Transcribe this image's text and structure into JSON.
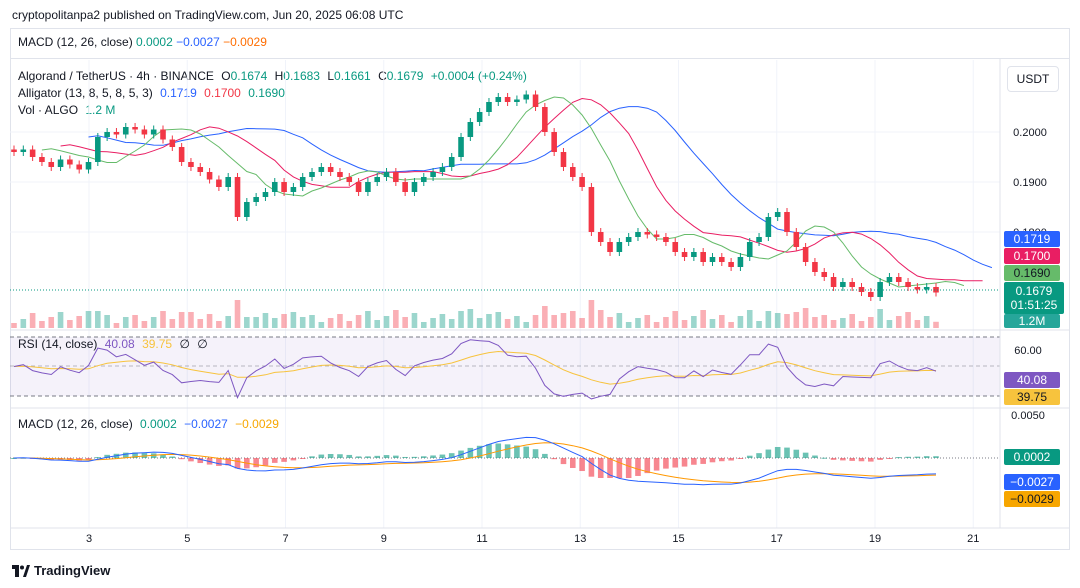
{
  "publisher_line": "cryptopolitanpa2 published on TradingView.com, Jun 20, 2025 06:08 UTC",
  "macd_top": {
    "label": "MACD (12, 26, close)",
    "v1": "0.0002",
    "v2": "−0.0027",
    "v3": "−0.0029"
  },
  "main_legend": {
    "symbol": "Algorand / TetherUS · 4h · BINANCE",
    "o_label": "O",
    "o": "0.1674",
    "h_label": "H",
    "h": "0.1683",
    "l_label": "L",
    "l": "0.1661",
    "c_label": "C",
    "c": "0.1679",
    "change": "+0.0004 (+0.24%)",
    "alligator_label": "Alligator (13, 8, 5, 8, 5, 3)",
    "alligator_jaw": "0.1719",
    "alligator_teeth": "0.1700",
    "alligator_lips": "0.1690",
    "vol_label": "Vol · ALGO",
    "vol": "1.2 M"
  },
  "currency_button": "USDT",
  "rsi_legend": {
    "label": "RSI (14, close)",
    "v1": "40.08",
    "v2": "39.75",
    "v3": "∅",
    "v4": "∅"
  },
  "macd_legend": {
    "label": "MACD (12, 26, close)",
    "v1": "0.0002",
    "v2": "−0.0027",
    "v3": "−0.0029"
  },
  "price_axis": {
    "ticks": [
      "0.2000",
      "0.1900",
      "0.1800"
    ]
  },
  "price_tags": {
    "jaw": "0.1719",
    "teeth": "0.1700",
    "lips": "0.1690",
    "last": "0.1679",
    "countdown": "01:51:25",
    "volume": "1.2M"
  },
  "rsi_axis": {
    "tick": "60.00",
    "tag1": "40.08",
    "tag2": "39.75"
  },
  "macd_axis": {
    "tick": "0.0050",
    "tag1": "0.0002",
    "tag2": "−0.0027",
    "tag3": "−0.0029"
  },
  "x_axis": [
    "3",
    "5",
    "7",
    "9",
    "11",
    "13",
    "15",
    "17",
    "19",
    "21"
  ],
  "footer": "TradingView",
  "colors": {
    "up": "#089981",
    "down": "#f23645",
    "jaw": "#2962ff",
    "teeth": "#e91e63",
    "lips": "#66bb6a",
    "rsi": "#7e57c2",
    "rsi_ma": "#f7c33d",
    "macd": "#2962ff",
    "signal": "#ff9800"
  },
  "chart_data": {
    "type": "candlestick",
    "interval": "4h",
    "x_axis_days": [
      3,
      5,
      7,
      9,
      11,
      13,
      15,
      17,
      19,
      21
    ],
    "price_ylim": [
      0.178,
      0.211
    ],
    "ohlc_last": {
      "open": 0.1674,
      "high": 0.1683,
      "low": 0.1661,
      "close": 0.1679
    },
    "closes": [
      0.196,
      0.1965,
      0.195,
      0.194,
      0.193,
      0.1945,
      0.1935,
      0.1925,
      0.194,
      0.199,
      0.2,
      0.1995,
      0.201,
      0.2005,
      0.1995,
      0.2005,
      0.1985,
      0.197,
      0.194,
      0.193,
      0.192,
      0.1905,
      0.189,
      0.191,
      0.183,
      0.186,
      0.187,
      0.188,
      0.19,
      0.188,
      0.189,
      0.191,
      0.192,
      0.193,
      0.192,
      0.191,
      0.19,
      0.188,
      0.19,
      0.191,
      0.192,
      0.19,
      0.188,
      0.19,
      0.191,
      0.192,
      0.193,
      0.195,
      0.199,
      0.202,
      0.204,
      0.206,
      0.207,
      0.206,
      0.2065,
      0.2075,
      0.205,
      0.2,
      0.196,
      0.193,
      0.191,
      0.189,
      0.18,
      0.178,
      0.176,
      0.178,
      0.179,
      0.18,
      0.1795,
      0.179,
      0.178,
      0.176,
      0.175,
      0.176,
      0.174,
      0.175,
      0.174,
      0.173,
      0.175,
      0.178,
      0.179,
      0.183,
      0.184,
      0.18,
      0.177,
      0.174,
      0.172,
      0.171,
      0.169,
      0.17,
      0.169,
      0.168,
      0.167,
      0.17,
      0.171,
      0.17,
      0.169,
      0.1685,
      0.169,
      0.1679
    ],
    "alligator_last": {
      "jaw": 0.1719,
      "teeth": 0.17,
      "lips": 0.169
    },
    "volume_last": "1.2M",
    "rsi_last": {
      "rsi": 40.08,
      "ma": 39.75
    },
    "rsi_levels": [
      70,
      50,
      30
    ],
    "macd_last": {
      "histogram": 0.0002,
      "macd": -0.0027,
      "signal": -0.0029
    }
  }
}
